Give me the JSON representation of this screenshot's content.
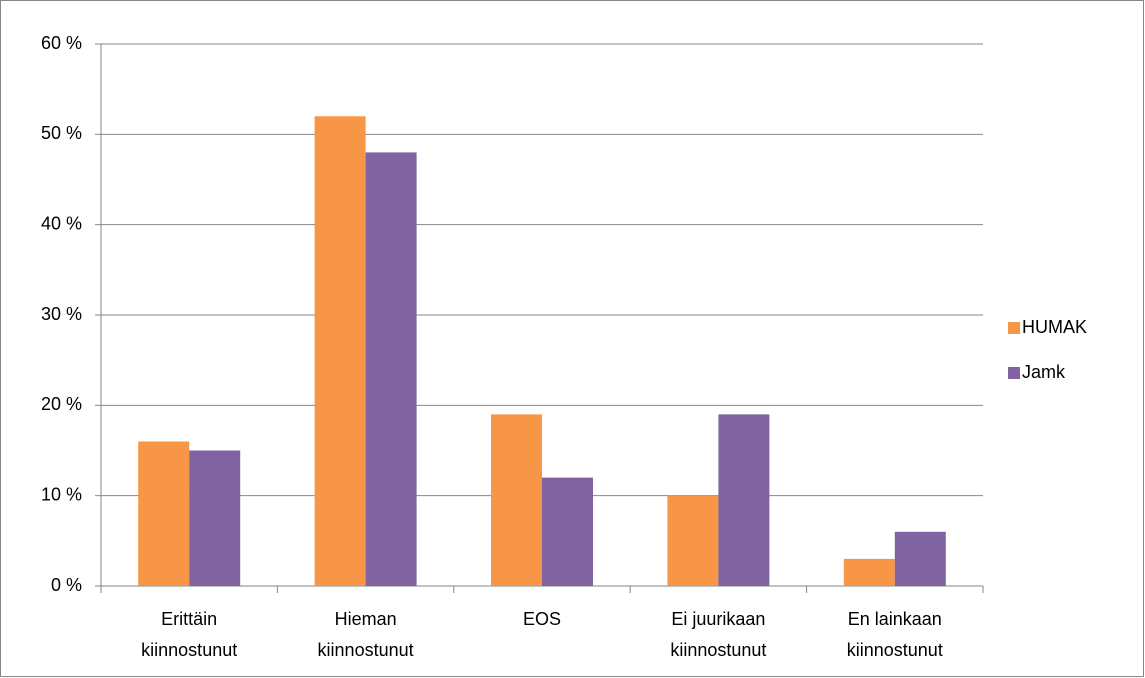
{
  "chart_data": {
    "type": "bar",
    "categories": [
      "Erittäin kiinnostunut",
      "Hieman kiinnostunut",
      "EOS",
      "Ei juurikaan kiinnostunut",
      "En lainkaan kiinnostunut"
    ],
    "series": [
      {
        "name": "HUMAK",
        "color": "#f79646",
        "values": [
          16,
          52,
          19,
          10,
          3
        ]
      },
      {
        "name": "Jamk",
        "color": "#8064a2",
        "values": [
          15,
          48,
          12,
          19,
          6
        ]
      }
    ],
    "ylim": [
      0,
      60
    ],
    "yticks": [
      {
        "value": 0,
        "label": "0 %"
      },
      {
        "value": 10,
        "label": "10 %"
      },
      {
        "value": 20,
        "label": "20 %"
      },
      {
        "value": 30,
        "label": "30 %"
      },
      {
        "value": 40,
        "label": "40 %"
      },
      {
        "value": 50,
        "label": "50 %"
      },
      {
        "value": 60,
        "label": "60 %"
      }
    ],
    "grid": true,
    "legend": "right"
  }
}
